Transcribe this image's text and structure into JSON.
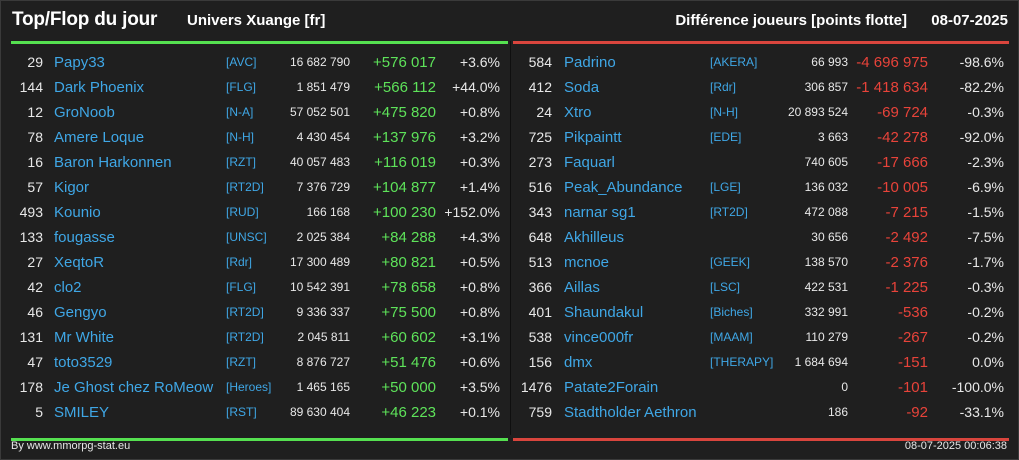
{
  "header": {
    "title": "Top/Flop du jour",
    "subtitle": "Univers Xuange [fr]",
    "metric": "Différence joueurs [points flotte]",
    "date": "08-07-2025"
  },
  "colors": {
    "positive": "#5ee35a",
    "negative": "#e8433a",
    "link": "#3fa7e6",
    "top_bar": "#55e050",
    "flop_bar": "#d9453d"
  },
  "top": [
    {
      "rank": "29",
      "name": "Papy33",
      "guild": "[AVC]",
      "score": "16 682 790",
      "delta": "+576 017",
      "pct": "+3.6%"
    },
    {
      "rank": "144",
      "name": "Dark Phoenix",
      "guild": "[FLG]",
      "score": "1 851 479",
      "delta": "+566 112",
      "pct": "+44.0%"
    },
    {
      "rank": "12",
      "name": "GroNoob",
      "guild": "[N-A]",
      "score": "57 052 501",
      "delta": "+475 820",
      "pct": "+0.8%"
    },
    {
      "rank": "78",
      "name": "Amere Loque",
      "guild": "[N-H]",
      "score": "4 430 454",
      "delta": "+137 976",
      "pct": "+3.2%"
    },
    {
      "rank": "16",
      "name": "Baron Harkonnen",
      "guild": "[RZT]",
      "score": "40 057 483",
      "delta": "+116 019",
      "pct": "+0.3%"
    },
    {
      "rank": "57",
      "name": "Kigor",
      "guild": "[RT2D]",
      "score": "7 376 729",
      "delta": "+104 877",
      "pct": "+1.4%"
    },
    {
      "rank": "493",
      "name": "Kounio",
      "guild": "[RUD]",
      "score": "166 168",
      "delta": "+100 230",
      "pct": "+152.0%"
    },
    {
      "rank": "133",
      "name": "fougasse",
      "guild": "[UNSC]",
      "score": "2 025 384",
      "delta": "+84 288",
      "pct": "+4.3%"
    },
    {
      "rank": "27",
      "name": "XeqtoR",
      "guild": "[Rdr]",
      "score": "17 300 489",
      "delta": "+80 821",
      "pct": "+0.5%"
    },
    {
      "rank": "42",
      "name": "clo2",
      "guild": "[FLG]",
      "score": "10 542 391",
      "delta": "+78 658",
      "pct": "+0.8%"
    },
    {
      "rank": "46",
      "name": "Gengyo",
      "guild": "[RT2D]",
      "score": "9 336 337",
      "delta": "+75 500",
      "pct": "+0.8%"
    },
    {
      "rank": "131",
      "name": "Mr White",
      "guild": "[RT2D]",
      "score": "2 045 811",
      "delta": "+60 602",
      "pct": "+3.1%"
    },
    {
      "rank": "47",
      "name": "toto3529",
      "guild": "[RZT]",
      "score": "8 876 727",
      "delta": "+51 476",
      "pct": "+0.6%"
    },
    {
      "rank": "178",
      "name": "Je Ghost chez RoMeow",
      "guild": "[Heroes]",
      "score": "1 465 165",
      "delta": "+50 000",
      "pct": "+3.5%"
    },
    {
      "rank": "5",
      "name": "SMILEY",
      "guild": "[RST]",
      "score": "89 630 404",
      "delta": "+46 223",
      "pct": "+0.1%"
    }
  ],
  "flop": [
    {
      "rank": "584",
      "name": "Padrino",
      "guild": "[AKERA]",
      "score": "66 993",
      "delta": "-4 696 975",
      "pct": "-98.6%"
    },
    {
      "rank": "412",
      "name": "Soda",
      "guild": "[Rdr]",
      "score": "306 857",
      "delta": "-1 418 634",
      "pct": "-82.2%"
    },
    {
      "rank": "24",
      "name": "Xtro",
      "guild": "[N-H]",
      "score": "20 893 524",
      "delta": "-69 724",
      "pct": "-0.3%"
    },
    {
      "rank": "725",
      "name": "Pikpaintt",
      "guild": "[EDE]",
      "score": "3 663",
      "delta": "-42 278",
      "pct": "-92.0%"
    },
    {
      "rank": "273",
      "name": "Faquarl",
      "guild": "",
      "score": "740 605",
      "delta": "-17 666",
      "pct": "-2.3%"
    },
    {
      "rank": "516",
      "name": "Peak_Abundance",
      "guild": "[LGE]",
      "score": "136 032",
      "delta": "-10 005",
      "pct": "-6.9%"
    },
    {
      "rank": "343",
      "name": "narnar sg1",
      "guild": "[RT2D]",
      "score": "472 088",
      "delta": "-7 215",
      "pct": "-1.5%"
    },
    {
      "rank": "648",
      "name": "Akhilleus",
      "guild": "",
      "score": "30 656",
      "delta": "-2 492",
      "pct": "-7.5%"
    },
    {
      "rank": "513",
      "name": "mcnoe",
      "guild": "[GEEK]",
      "score": "138 570",
      "delta": "-2 376",
      "pct": "-1.7%"
    },
    {
      "rank": "366",
      "name": "Aillas",
      "guild": "[LSC]",
      "score": "422 531",
      "delta": "-1 225",
      "pct": "-0.3%"
    },
    {
      "rank": "401",
      "name": "Shaundakul",
      "guild": "[Biches]",
      "score": "332 991",
      "delta": "-536",
      "pct": "-0.2%"
    },
    {
      "rank": "538",
      "name": "vince000fr",
      "guild": "[MAAM]",
      "score": "110 279",
      "delta": "-267",
      "pct": "-0.2%"
    },
    {
      "rank": "156",
      "name": "dmx",
      "guild": "[THERAPY]",
      "score": "1 684 694",
      "delta": "-151",
      "pct": "0.0%"
    },
    {
      "rank": "1476",
      "name": "Patate2Forain",
      "guild": "",
      "score": "0",
      "delta": "-101",
      "pct": "-100.0%"
    },
    {
      "rank": "759",
      "name": "Stadtholder Aethron",
      "guild": "",
      "score": "186",
      "delta": "-92",
      "pct": "-33.1%"
    }
  ],
  "footer": {
    "credit": "By www.mmorpg-stat.eu",
    "timestamp": "08-07-2025 00:06:38"
  }
}
